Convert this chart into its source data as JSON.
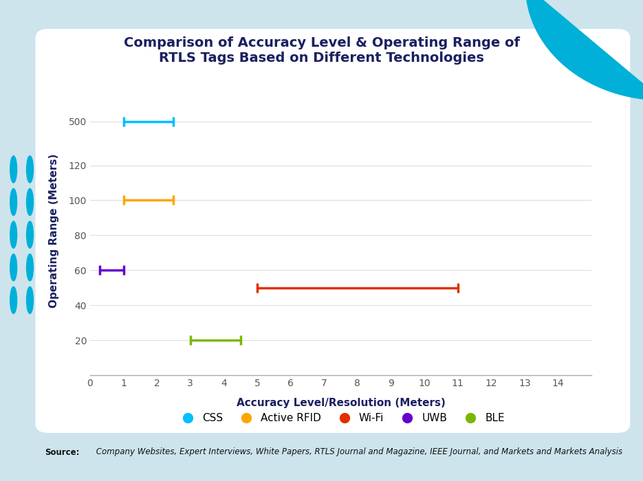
{
  "title": "Comparison of Accuracy Level & Operating Range of\nRTLS Tags Based on Different Technologies",
  "xlabel": "Accuracy Level/Resolution (Meters)",
  "ylabel": "Operating Range (Meters)",
  "bg_outer": "#cde4ed",
  "bg_panel": "#ffffff",
  "bg_bottom": "#00b0d8",
  "series": [
    {
      "name": "CSS",
      "color": "#00bfff",
      "y": 500,
      "x_min": 1.0,
      "x_max": 2.5
    },
    {
      "name": "Active RFID",
      "color": "#ffa500",
      "y": 100,
      "x_min": 1.0,
      "x_max": 2.5
    },
    {
      "name": "Wi-Fi",
      "color": "#e03000",
      "y": 50,
      "x_min": 5.0,
      "x_max": 11.0
    },
    {
      "name": "UWB",
      "color": "#6600cc",
      "y": 60,
      "x_min": 0.3,
      "x_max": 1.0
    },
    {
      "name": "BLE",
      "color": "#7ab800",
      "y": 10,
      "x_min": 3.0,
      "x_max": 4.5
    }
  ],
  "xlim": [
    0,
    15
  ],
  "xticks": [
    0,
    1,
    2,
    3,
    4,
    5,
    6,
    7,
    8,
    9,
    10,
    11,
    12,
    13,
    14
  ],
  "ytick_labels": [
    "20",
    "40",
    "60",
    "80",
    "100",
    "120",
    "500"
  ],
  "ytick_values": [
    20,
    40,
    60,
    80,
    100,
    120,
    500
  ],
  "ytick_positions": [
    20,
    40,
    60,
    80,
    100,
    120,
    145
  ],
  "ylim": [
    0,
    165
  ],
  "source_bold": "Source:",
  "source_text": " Company Websites, Expert Interviews, White Papers, RTLS Journal and Magazine, IEEE Journal, and Markets and Markets Analysis",
  "title_color": "#1a2060",
  "axis_label_color": "#1a2060",
  "tick_color": "#555555",
  "line_width": 2.5,
  "cap_size": 5
}
